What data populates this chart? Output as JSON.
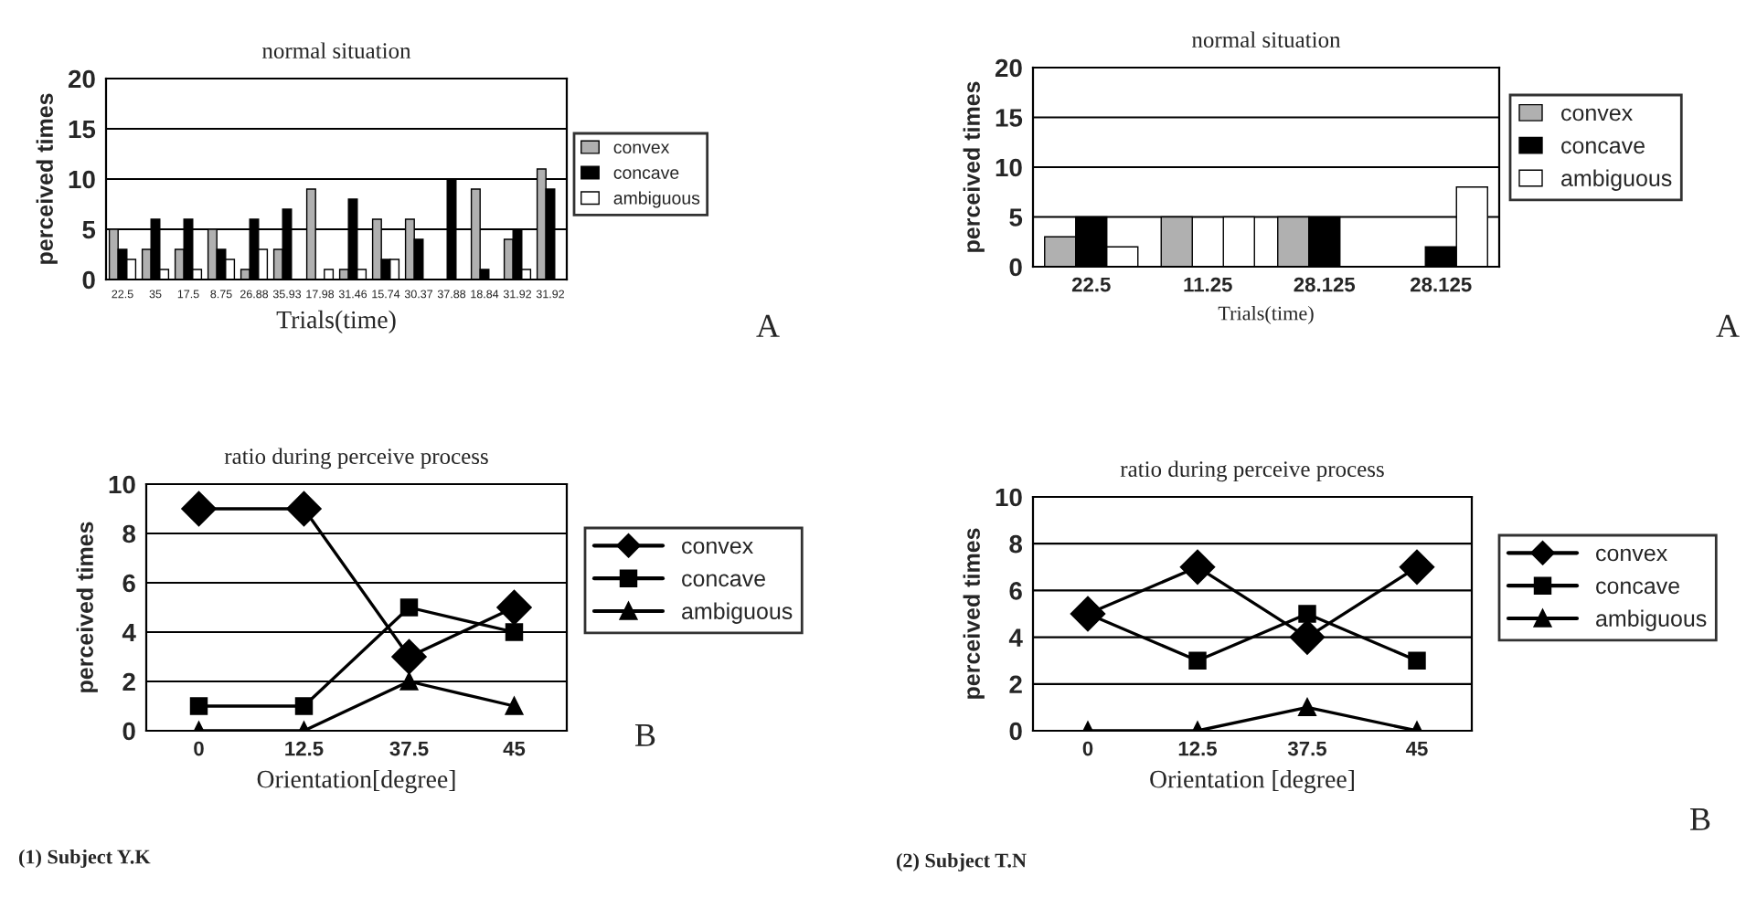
{
  "chart_data": [
    {
      "type": "bar",
      "title": "normal situation",
      "xlabel": "Trials(time)",
      "ylabel": "perceived times",
      "categories": [
        "22.5",
        "35",
        "17.5",
        "8.75",
        "26.88",
        "35.93",
        "17.98",
        "31.46",
        "15.74",
        "30.37",
        "37.88",
        "18.84",
        "31.92",
        "31.92"
      ],
      "series": [
        {
          "name": "convex",
          "color": "#b0b0b0",
          "values": [
            5,
            3,
            3,
            5,
            1,
            3,
            9,
            1,
            6,
            6,
            0,
            9,
            4,
            11
          ]
        },
        {
          "name": "concave",
          "color": "#000000",
          "values": [
            3,
            6,
            6,
            3,
            6,
            7,
            0,
            8,
            2,
            4,
            10,
            1,
            5,
            9
          ]
        },
        {
          "name": "ambiguous",
          "color": "#ffffff",
          "values": [
            2,
            1,
            1,
            2,
            3,
            0,
            1,
            1,
            2,
            0,
            0,
            0,
            1,
            0
          ]
        }
      ],
      "ylim": [
        0,
        20
      ],
      "yticks": [
        0,
        5,
        10,
        15,
        20
      ],
      "grid": "y",
      "legend": "right",
      "annotations": [
        "A"
      ]
    },
    {
      "type": "bar",
      "title": "normal situation",
      "xlabel": "Trials(time)",
      "ylabel": "perceived times",
      "categories": [
        "22.5",
        "11.25",
        "28.125",
        "28.125"
      ],
      "series": [
        {
          "name": "convex",
          "color": "#b0b0b0",
          "values": [
            3,
            5,
            5,
            0
          ]
        },
        {
          "name": "concave",
          "color": "#000000",
          "values": [
            5,
            0,
            5,
            2
          ]
        },
        {
          "name": "ambiguous",
          "color": "#ffffff",
          "values": [
            2,
            5,
            0,
            8
          ]
        }
      ],
      "ylim": [
        0,
        20
      ],
      "yticks": [
        0,
        5,
        10,
        15,
        20
      ],
      "grid": "y",
      "legend": "right",
      "annotations": [
        "A"
      ]
    },
    {
      "type": "line",
      "title": "ratio during perceive process",
      "xlabel": "Orientation[degree]",
      "ylabel": "perceived times",
      "categories": [
        "0",
        "12.5",
        "37.5",
        "45"
      ],
      "series": [
        {
          "name": "convex",
          "color": "#000000",
          "marker": "diamond",
          "values": [
            9,
            9,
            3,
            5
          ]
        },
        {
          "name": "concave",
          "color": "#000000",
          "marker": "square",
          "values": [
            1,
            1,
            5,
            4
          ]
        },
        {
          "name": "ambiguous",
          "color": "#000000",
          "marker": "triangle",
          "values": [
            0,
            0,
            2,
            1
          ]
        }
      ],
      "ylim": [
        0,
        10
      ],
      "yticks": [
        0,
        2,
        4,
        6,
        8,
        10
      ],
      "grid": "y",
      "legend": "right",
      "annotations": [
        "B",
        "(1) Subject Y.K"
      ]
    },
    {
      "type": "line",
      "title": "ratio during perceive process",
      "xlabel": "Orientation [degree]",
      "ylabel": "perceived times",
      "categories": [
        "0",
        "12.5",
        "37.5",
        "45"
      ],
      "series": [
        {
          "name": "convex",
          "color": "#000000",
          "marker": "diamond",
          "values": [
            5,
            7,
            4,
            7
          ]
        },
        {
          "name": "concave",
          "color": "#000000",
          "marker": "square",
          "values": [
            5,
            3,
            5,
            3
          ]
        },
        {
          "name": "ambiguous",
          "color": "#000000",
          "marker": "triangle",
          "values": [
            0,
            0,
            1,
            0
          ]
        }
      ],
      "ylim": [
        0,
        10
      ],
      "yticks": [
        0,
        2,
        4,
        6,
        8,
        10
      ],
      "grid": "y",
      "legend": "right",
      "annotations": [
        "B",
        "(2) Subject T.N"
      ]
    }
  ]
}
